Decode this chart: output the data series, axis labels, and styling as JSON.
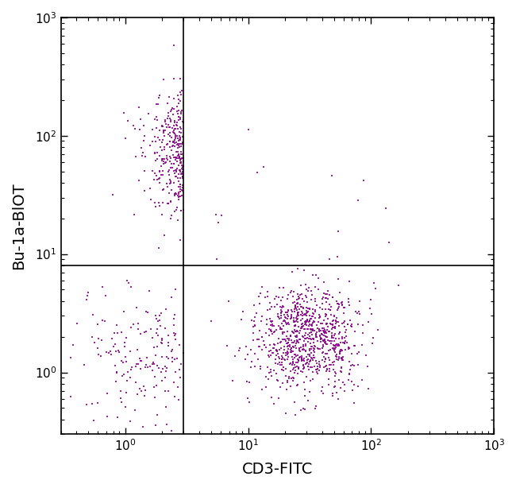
{
  "xlabel": "CD3-FITC",
  "ylabel": "Bu-1a-BlOT",
  "xlim_log": [
    0.3,
    1000
  ],
  "ylim_log": [
    0.3,
    1000
  ],
  "quadrant_x": 3.0,
  "quadrant_y": 8.0,
  "dot_color": "#8B008B",
  "dot_color_light": "#CC44CC",
  "dot_size": 1.8,
  "dot_alpha": 0.85,
  "background_color": "#ffffff",
  "xlabel_fontsize": 14,
  "ylabel_fontsize": 14,
  "tick_fontsize": 11,
  "clusters": [
    {
      "name": "upper_left",
      "x_log_mean": 0.65,
      "x_log_std": 0.22,
      "y_log_mean": 1.85,
      "y_log_std": 0.25,
      "n": 320,
      "x_min": 0.3,
      "x_max": 3.0,
      "y_min": 0.3,
      "y_max": 1000
    },
    {
      "name": "lower_right",
      "x_log_mean": 1.48,
      "x_log_std": 0.22,
      "y_log_mean": 0.3,
      "y_log_std": 0.22,
      "n": 900,
      "x_min": 3.0,
      "x_max": 1000,
      "y_min": 0.3,
      "y_max": 8.0
    },
    {
      "name": "lower_left",
      "x_log_mean": 0.2,
      "x_log_std": 0.3,
      "y_log_mean": 0.15,
      "y_log_std": 0.28,
      "n": 180,
      "x_min": 0.3,
      "x_max": 3.0,
      "y_min": 0.3,
      "y_max": 8.0
    },
    {
      "name": "upper_right_sparse",
      "x_log_mean": 1.5,
      "x_log_std": 0.5,
      "y_log_mean": 1.3,
      "y_log_std": 0.4,
      "n": 15,
      "x_min": 3.0,
      "x_max": 1000,
      "y_min": 8.0,
      "y_max": 1000
    }
  ]
}
